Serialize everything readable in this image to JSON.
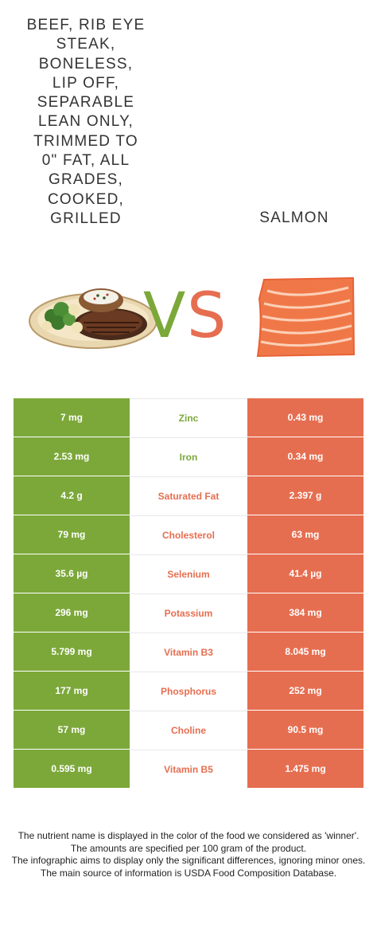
{
  "foods": {
    "left": {
      "title": "BEEF, RIB EYE\nSTEAK,\nBONELESS,\nLIP OFF,\nSEPARABLE\nLEAN ONLY,\nTRIMMED TO\n0\" FAT, ALL\nGRADES,\nCOOKED,\nGRILLED",
      "color": "#7ca83a"
    },
    "right": {
      "title": "SALMON",
      "color": "#e66e50"
    }
  },
  "vs": {
    "v": "V",
    "s": "S"
  },
  "rows": [
    {
      "left": "7 mg",
      "nutrient": "Zinc",
      "right": "0.43 mg",
      "winner": "left"
    },
    {
      "left": "2.53 mg",
      "nutrient": "Iron",
      "right": "0.34 mg",
      "winner": "left"
    },
    {
      "left": "4.2 g",
      "nutrient": "Saturated Fat",
      "right": "2.397 g",
      "winner": "right"
    },
    {
      "left": "79 mg",
      "nutrient": "Cholesterol",
      "right": "63 mg",
      "winner": "right"
    },
    {
      "left": "35.6 µg",
      "nutrient": "Selenium",
      "right": "41.4 µg",
      "winner": "right"
    },
    {
      "left": "296 mg",
      "nutrient": "Potassium",
      "right": "384 mg",
      "winner": "right"
    },
    {
      "left": "5.799 mg",
      "nutrient": "Vitamin B3",
      "right": "8.045 mg",
      "winner": "right"
    },
    {
      "left": "177 mg",
      "nutrient": "Phosphorus",
      "right": "252 mg",
      "winner": "right"
    },
    {
      "left": "57 mg",
      "nutrient": "Choline",
      "right": "90.5 mg",
      "winner": "right"
    },
    {
      "left": "0.595 mg",
      "nutrient": "Vitamin B5",
      "right": "1.475 mg",
      "winner": "right"
    }
  ],
  "footnotes": [
    "The nutrient name is displayed in the color of the food we considered as 'winner'.",
    "The amounts are specified per 100 gram of the product.",
    "The infographic aims to display only the significant differences, ignoring minor ones.",
    "The main source of information is USDA Food Composition Database."
  ]
}
